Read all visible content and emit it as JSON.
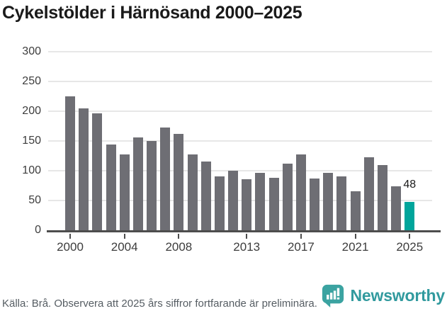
{
  "title": "Cykelstölder i Härnösand 2000–2025",
  "chart_data": {
    "type": "bar",
    "title": "Cykelstölder i Härnösand 2000–2025",
    "x": [
      2000,
      2001,
      2002,
      2003,
      2004,
      2005,
      2006,
      2007,
      2008,
      2009,
      2010,
      2011,
      2012,
      2013,
      2014,
      2015,
      2016,
      2017,
      2018,
      2019,
      2020,
      2021,
      2022,
      2023,
      2024,
      2025
    ],
    "values": [
      225,
      205,
      196,
      144,
      127,
      156,
      150,
      173,
      162,
      127,
      115,
      90,
      100,
      86,
      96,
      88,
      112,
      127,
      87,
      97,
      90,
      65,
      123,
      110,
      74,
      48
    ],
    "highlight_year": 2025,
    "highlight_label": "48",
    "bar_color": "#6e6e74",
    "highlight_color": "#00a59b",
    "ylim": [
      0,
      300
    ],
    "yticks": [
      0,
      50,
      100,
      150,
      200,
      250,
      300
    ],
    "xticks": [
      2000,
      2004,
      2008,
      2013,
      2017,
      2021,
      2025
    ],
    "grid": "horizontal",
    "legend": "none"
  },
  "footer": {
    "source_text": "Källa: Brå. Observera att 2025 års siffror fortfarande är preliminära."
  },
  "branding": {
    "wordmark": "Newsworthy",
    "icon": "bar-chart-speech-bubble-icon",
    "icon_color": "#3ba3a1",
    "wordmark_color": "#319a9e"
  }
}
